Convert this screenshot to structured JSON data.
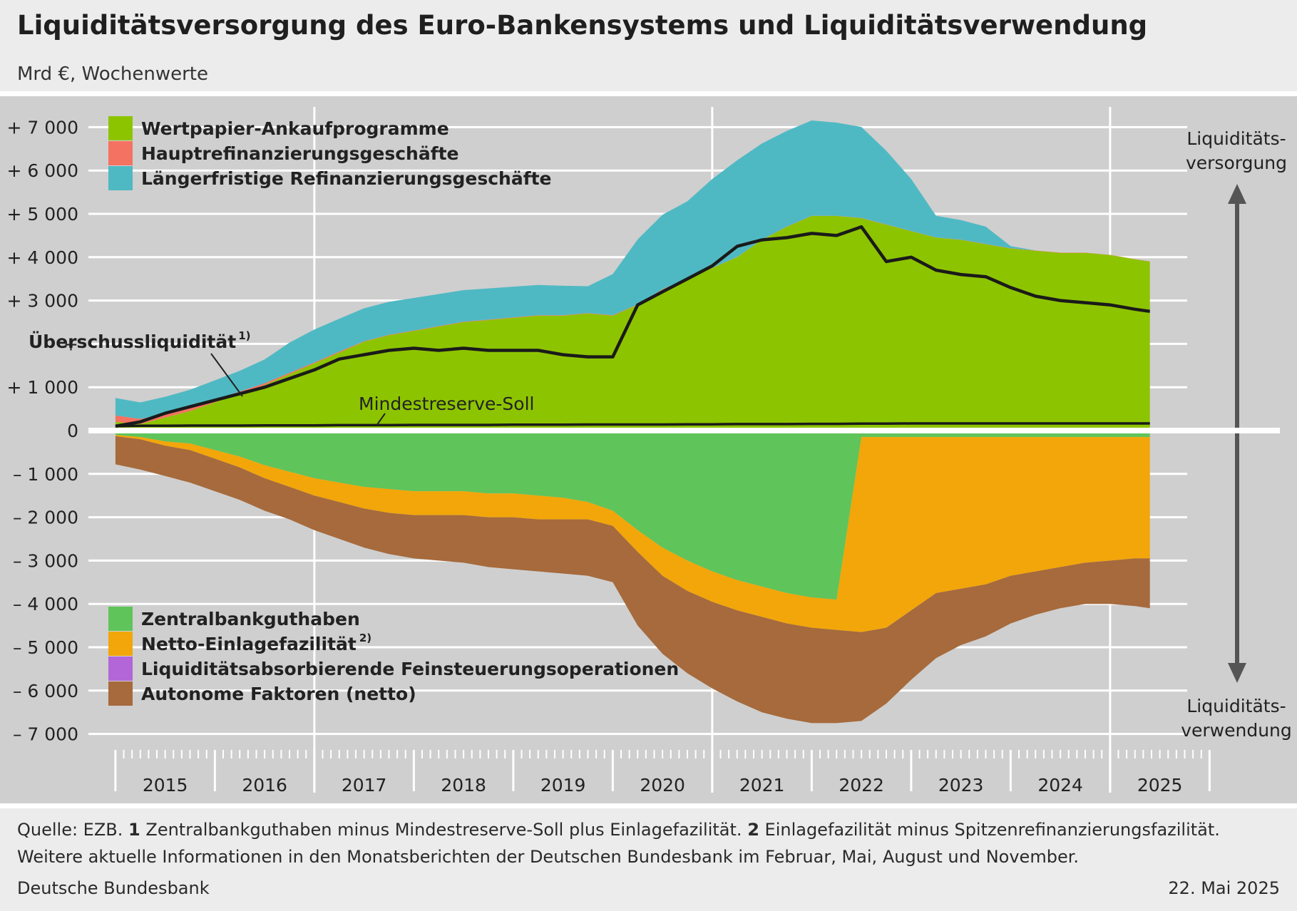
{
  "title": "Liquiditätsversorgung des Euro-Bankensystems und Liquiditätsverwendung",
  "subtitle": "Mrd €, Wochenwerte",
  "chart_data": {
    "type": "area",
    "x_unit": "year",
    "ylim": [
      -7300,
      7400
    ],
    "y_ticks": [
      {
        "value": 7000,
        "label": "+ 7 000"
      },
      {
        "value": 6000,
        "label": "+ 6 000"
      },
      {
        "value": 5000,
        "label": "+ 5 000"
      },
      {
        "value": 4000,
        "label": "+ 4 000"
      },
      {
        "value": 3000,
        "label": "+ 3 000"
      },
      {
        "value": 2000,
        "label": "+"
      },
      {
        "value": 1000,
        "label": "+ 1 000"
      },
      {
        "value": 0,
        "label": "0"
      },
      {
        "value": -1000,
        "label": "– 1 000"
      },
      {
        "value": -2000,
        "label": "– 2 000"
      },
      {
        "value": -3000,
        "label": "– 3 000"
      },
      {
        "value": -4000,
        "label": "– 4 000"
      },
      {
        "value": -5000,
        "label": "– 5 000"
      },
      {
        "value": -6000,
        "label": "– 6 000"
      },
      {
        "value": -7000,
        "label": "– 7 000"
      }
    ],
    "x_labels": [
      "2015",
      "2016",
      "2017",
      "2018",
      "2019",
      "2020",
      "2021",
      "2022",
      "2023",
      "2024",
      "2025"
    ],
    "x": [
      2015.0,
      2015.25,
      2015.5,
      2015.75,
      2016.0,
      2016.25,
      2016.5,
      2016.75,
      2017.0,
      2017.25,
      2017.5,
      2017.75,
      2018.0,
      2018.25,
      2018.5,
      2018.75,
      2019.0,
      2019.25,
      2019.5,
      2019.75,
      2020.0,
      2020.25,
      2020.5,
      2020.75,
      2021.0,
      2021.25,
      2021.5,
      2021.75,
      2022.0,
      2022.25,
      2022.5,
      2022.75,
      2023.0,
      2023.25,
      2023.5,
      2023.75,
      2024.0,
      2024.25,
      2024.5,
      2024.75,
      2025.0,
      2025.25,
      2025.4
    ],
    "series": [
      {
        "name": "Wertpapier-Ankaufprogramme",
        "group": "supply",
        "color": "#8dc400",
        "values": [
          200,
          150,
          300,
          450,
          650,
          850,
          1050,
          1300,
          1550,
          1800,
          2050,
          2200,
          2300,
          2400,
          2500,
          2550,
          2600,
          2650,
          2650,
          2700,
          2650,
          2900,
          3250,
          3500,
          3750,
          4000,
          4400,
          4700,
          4950,
          4950,
          4900,
          4750,
          4600,
          4450,
          4400,
          4300,
          4200,
          4150,
          4100,
          4100,
          4050,
          3950,
          3900
        ]
      },
      {
        "name": "Hauptrefinanzierungsgeschäfte",
        "group": "supply",
        "color": "#f47262",
        "values": [
          150,
          120,
          80,
          70,
          60,
          50,
          40,
          30,
          20,
          20,
          10,
          10,
          10,
          10,
          10,
          10,
          10,
          10,
          10,
          10,
          10,
          10,
          10,
          10,
          5,
          5,
          5,
          5,
          5,
          5,
          5,
          5,
          5,
          5,
          5,
          5,
          5,
          5,
          5,
          5,
          5,
          5,
          5
        ]
      },
      {
        "name": "Längerfristige Refinanzierungsgeschäfte",
        "group": "supply",
        "color": "#4fb9c3",
        "values": [
          400,
          380,
          400,
          420,
          450,
          480,
          550,
          700,
          760,
          760,
          760,
          760,
          750,
          740,
          730,
          720,
          710,
          700,
          680,
          620,
          950,
          1500,
          1720,
          1780,
          2050,
          2230,
          2220,
          2210,
          2200,
          2150,
          2100,
          1700,
          1200,
          500,
          450,
          400,
          50,
          0,
          0,
          0,
          0,
          0,
          0
        ]
      },
      {
        "name": "Zentralbankguthaben",
        "group": "absorption",
        "color": "#5fc45a",
        "values": [
          -100,
          -150,
          -250,
          -300,
          -450,
          -600,
          -800,
          -950,
          -1100,
          -1200,
          -1300,
          -1350,
          -1400,
          -1400,
          -1400,
          -1450,
          -1450,
          -1500,
          -1550,
          -1650,
          -1850,
          -2300,
          -2700,
          -3000,
          -3250,
          -3450,
          -3600,
          -3750,
          -3850,
          -3900,
          -150,
          -150,
          -150,
          -150,
          -150,
          -150,
          -150,
          -150,
          -150,
          -150,
          -150,
          -150,
          -150
        ]
      },
      {
        "name": "Netto-Einlagefazilität",
        "group": "absorption",
        "color": "#f2a60a",
        "values": [
          -30,
          -50,
          -100,
          -150,
          -200,
          -250,
          -300,
          -350,
          -400,
          -450,
          -500,
          -550,
          -550,
          -550,
          -550,
          -550,
          -550,
          -550,
          -500,
          -400,
          -350,
          -500,
          -650,
          -700,
          -700,
          -700,
          -700,
          -700,
          -700,
          -700,
          -4500,
          -4400,
          -4000,
          -3600,
          -3500,
          -3400,
          -3200,
          -3100,
          -3000,
          -2900,
          -2850,
          -2800,
          -2800
        ]
      },
      {
        "name": "Liquiditätsabsorbierende Feinsteuerungsoperationen",
        "group": "absorption",
        "color": "#b266d8",
        "values": [
          0,
          0,
          0,
          0,
          0,
          0,
          0,
          0,
          0,
          0,
          0,
          0,
          0,
          0,
          0,
          0,
          0,
          0,
          0,
          0,
          0,
          0,
          0,
          0,
          0,
          0,
          0,
          0,
          0,
          0,
          0,
          0,
          0,
          0,
          0,
          0,
          0,
          0,
          0,
          0,
          0,
          0,
          0
        ]
      },
      {
        "name": "Autonome Faktoren (netto)",
        "group": "absorption",
        "color": "#a66a3c",
        "values": [
          -650,
          -700,
          -700,
          -750,
          -750,
          -750,
          -750,
          -750,
          -800,
          -850,
          -900,
          -950,
          -1000,
          -1050,
          -1100,
          -1150,
          -1200,
          -1200,
          -1250,
          -1300,
          -1300,
          -1700,
          -1800,
          -1900,
          -2000,
          -2100,
          -2200,
          -2200,
          -2200,
          -2150,
          -2050,
          -1750,
          -1600,
          -1500,
          -1300,
          -1200,
          -1100,
          -1000,
          -950,
          -950,
          -1000,
          -1100,
          -1150
        ]
      },
      {
        "name": "Überschussliquidität",
        "group": "line",
        "color": "#1a1a1a",
        "values": [
          100,
          200,
          400,
          550,
          700,
          850,
          1000,
          1200,
          1400,
          1650,
          1750,
          1850,
          1900,
          1850,
          1900,
          1850,
          1850,
          1850,
          1750,
          1700,
          1700,
          2900,
          3200,
          3500,
          3800,
          4250,
          4400,
          4450,
          4550,
          4500,
          4700,
          3900,
          4000,
          3700,
          3600,
          3550,
          3300,
          3100,
          3000,
          2950,
          2900,
          2800,
          2750
        ]
      },
      {
        "name": "Mindestreserve-Soll",
        "group": "line",
        "color": "#1a1a1a",
        "values": [
          100,
          110,
          110,
          115,
          115,
          115,
          120,
          120,
          120,
          125,
          125,
          125,
          130,
          130,
          130,
          130,
          135,
          135,
          135,
          140,
          140,
          140,
          140,
          145,
          145,
          150,
          150,
          150,
          155,
          155,
          160,
          160,
          165,
          165,
          165,
          165,
          165,
          165,
          165,
          165,
          165,
          165,
          165
        ]
      }
    ],
    "legend_upper": [
      "Wertpapier-Ankaufprogramme",
      "Hauptrefinanzierungsgeschäfte",
      "Längerfristige Refinanzierungsgeschäfte"
    ],
    "legend_lower": [
      "Zentralbankguthaben",
      "Netto-Einlagefazilität",
      "Liquiditätsabsorbierende Feinsteuerungsoperationen",
      "Autonome Faktoren (netto)"
    ],
    "annotations": {
      "excess_liquidity": "Überschussliquidität",
      "excess_liquidity_sup": "1)",
      "reserve_requirement": "Mindestreserve-Soll",
      "net_deposit_sup": "2)",
      "supply_top": "Liquiditäts-",
      "supply_bottom": "versorgung",
      "usage_top": "Liquiditäts-",
      "usage_bottom": "verwendung"
    },
    "grid": true,
    "legend_position": "top-left and bottom-left"
  },
  "footer": {
    "line1_prefix": "Quelle: EZB.",
    "fn1_num": "1",
    "fn1_text": "Zentralbankguthaben minus Mindestreserve-Soll plus Einlagefazilität.",
    "fn2_num": "2",
    "fn2_text": "Einlagefazilität minus Spitzenrefinanzierungsfazilität.",
    "line2": "Weitere aktuelle Informationen in den Monatsberichten der Deutschen Bundesbank im Februar, Mai, August und November.",
    "publisher": "Deutsche Bundesbank",
    "date": "22. Mai 2025"
  }
}
